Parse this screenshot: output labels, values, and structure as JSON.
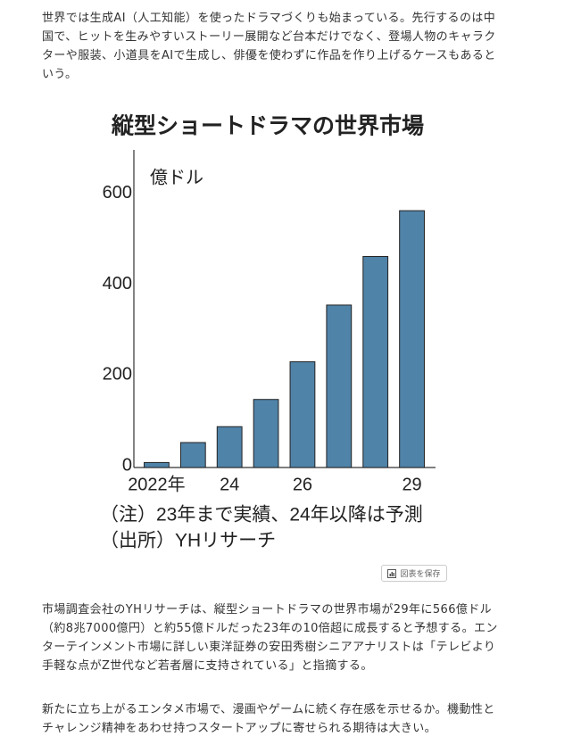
{
  "article": {
    "paragraphs": [
      "世界では生成AI（人工知能）を使ったドラマづくりも始まっている。先行するのは中国で、ヒットを生みやすいストーリー展開など台本だけでなく、登場人物のキャラクターや服装、小道具をAIで生成し、俳優を使わずに作品を作り上げるケースもあるという。",
      "市場調査会社のYHリサーチは、縦型ショートドラマの世界市場が29年に566億ドル（約8兆7000億円）と約55億ドルだった23年の10倍超に成長すると予想する。エンターテインメント市場に詳しい東洋証券の安田秀樹シニアアナリストは「テレビより手軽な点がZ世代など若者層に支持されている」と指摘する。",
      "新たに立ち上がるエンタメ市場で、漫画やゲームに続く存在感を示せるか。機動性とチャレンジ精神をあわせ持つスタートアップに寄せられる期待は大きい。"
    ],
    "save_button": "図表を保存"
  },
  "chart_data": {
    "type": "bar",
    "title": "縦型ショートドラマの世界市場",
    "unit_label": "億ドル",
    "categories": [
      "2022年",
      null,
      "24",
      null,
      "26",
      null,
      null,
      "29"
    ],
    "values": [
      11,
      55,
      90,
      150,
      233,
      358,
      465,
      566
    ],
    "color": "#5083a8",
    "ylim": [
      0,
      700
    ],
    "yticks": [
      0,
      200,
      400,
      600
    ],
    "grid": false,
    "notes": [
      "（注）23年まで実績、24年以降は予測",
      "（出所）YHリサーチ"
    ]
  }
}
